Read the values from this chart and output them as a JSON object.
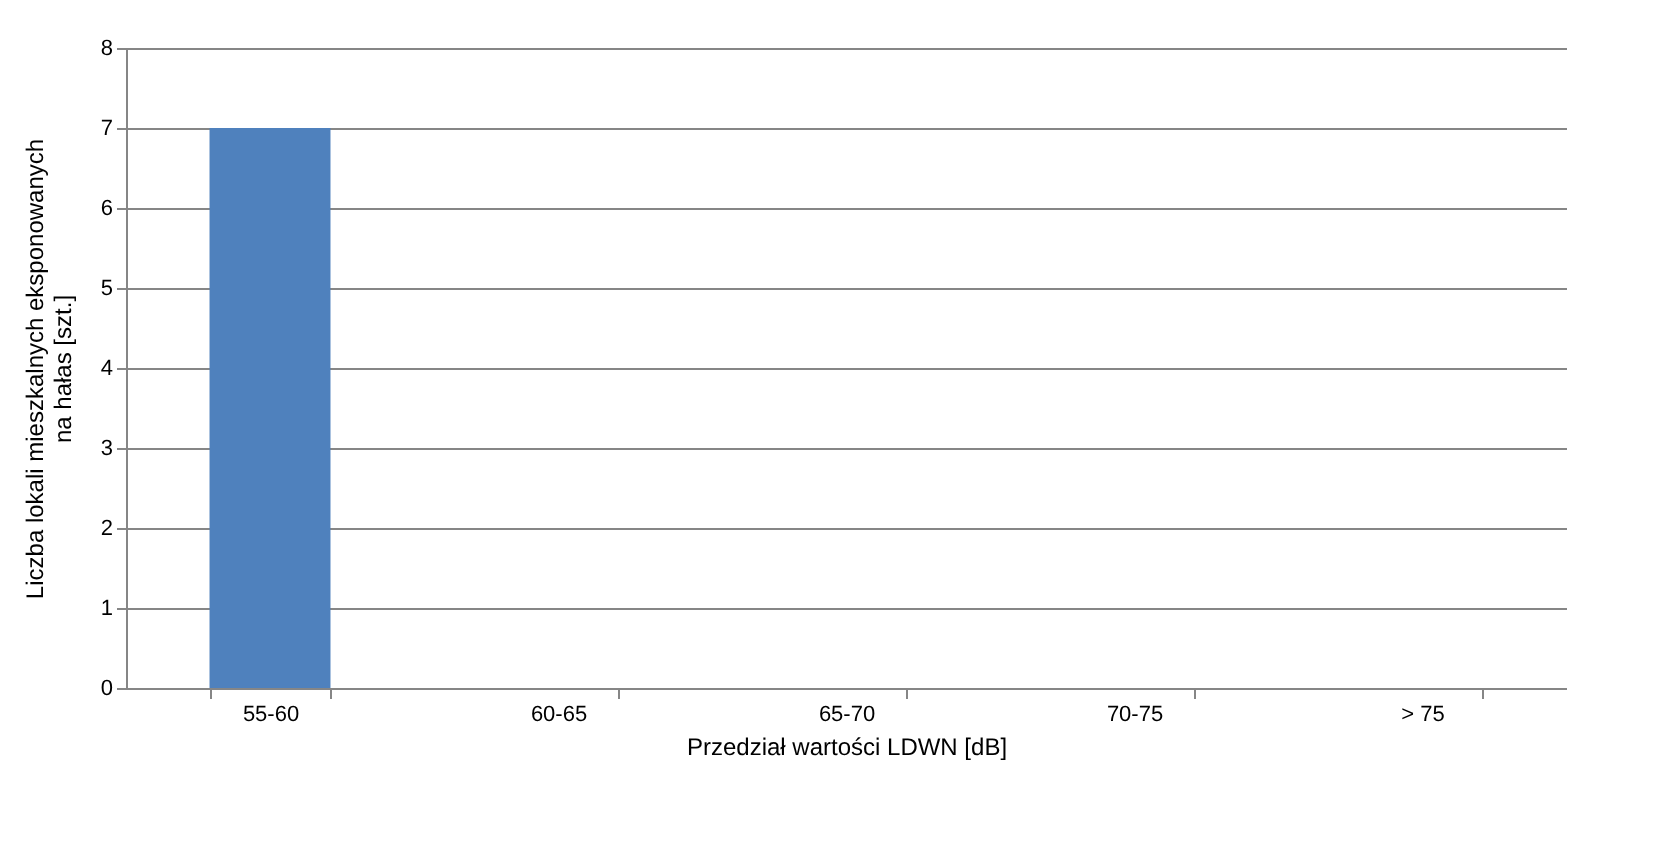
{
  "chart_data": {
    "type": "bar",
    "xlabel": "Przedział wartości LDWN [dB]",
    "ylabel": "Liczba lokali mieszkalnych eksponowanych\nna hałas [szt.]",
    "categories": [
      "55-60",
      "60-65",
      "65-70",
      "70-75",
      "> 75"
    ],
    "values": [
      7,
      0,
      0,
      0,
      0
    ],
    "color": "#4f81bd",
    "ylim": [
      0,
      8
    ],
    "yticks": [
      0,
      1,
      2,
      3,
      4,
      5,
      6,
      7,
      8
    ],
    "grid": "y"
  }
}
